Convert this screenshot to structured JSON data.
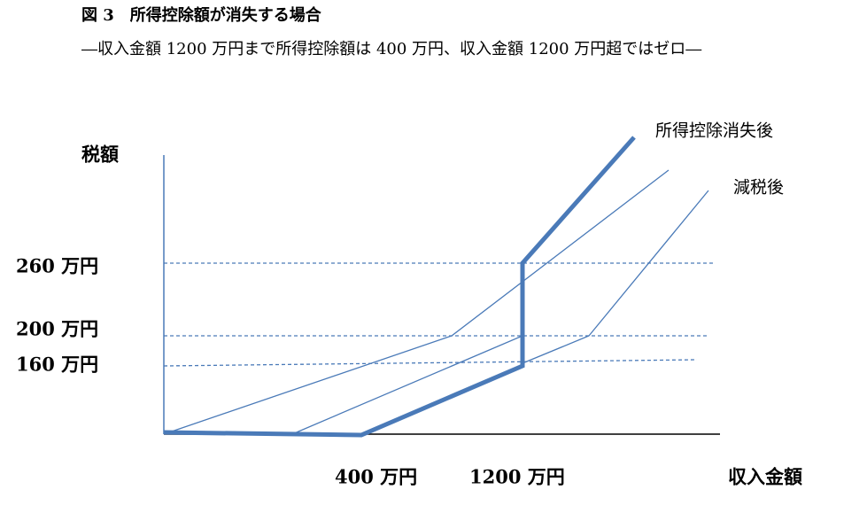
{
  "header": {
    "title": "図 3　所得控除額が消失する場合",
    "subtitle": "―収入金額 1200 万円まで所得控除額は 400 万円、収入金額 1200 万円超ではゼロ―"
  },
  "diagram": {
    "y_axis_label": "税額",
    "x_axis_label": "収入金額",
    "y_labels": [
      "260 万円",
      "200 万円",
      "160 万円"
    ],
    "x_labels": [
      "400 万円",
      "1200 万円"
    ],
    "line_labels": [
      "所得控除消失後",
      "減税後"
    ]
  }
}
